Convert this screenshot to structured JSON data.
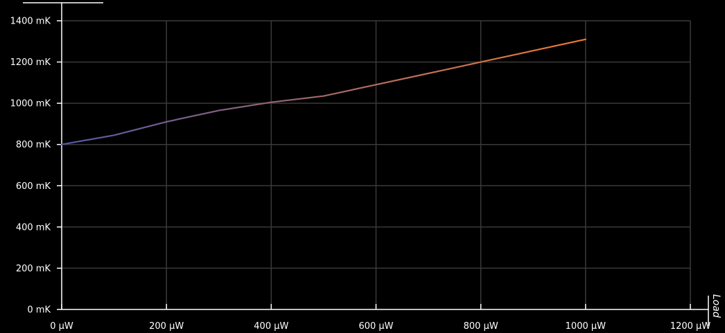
{
  "chart_data": {
    "type": "line",
    "title": "",
    "xlabel": "Load",
    "ylabel": "",
    "x_unit": "μW",
    "y_unit": "mK",
    "xlim": [
      0,
      1200
    ],
    "ylim": [
      0,
      1400
    ],
    "x_ticks": [
      0,
      200,
      400,
      600,
      800,
      1000,
      1200
    ],
    "y_ticks": [
      0,
      200,
      400,
      600,
      800,
      1000,
      1200,
      1400
    ],
    "x_tick_labels": [
      "0 μW",
      "200 μW",
      "400 μW",
      "600 μW",
      "800 μW",
      "1000 μW",
      "1200 μW"
    ],
    "y_tick_labels": [
      "0 mK",
      "200 mK",
      "400 mK",
      "600 mK",
      "800 mK",
      "1000 mK",
      "1200 mK",
      "1400 mK"
    ],
    "grid": true,
    "legend": "none",
    "series": [
      {
        "x": [
          0,
          100,
          200,
          300,
          400,
          500,
          600,
          700,
          800,
          900,
          1000
        ],
        "values": [
          800,
          845,
          910,
          965,
          1005,
          1035,
          1090,
          1145,
          1200,
          1255,
          1310
        ],
        "color_start": "#5558a8",
        "color_end": "#f07a30"
      }
    ],
    "colors": {
      "background": "#000000",
      "axis": "#ffffff",
      "grid": "#3a3a3a",
      "text": "#ffffff"
    }
  }
}
